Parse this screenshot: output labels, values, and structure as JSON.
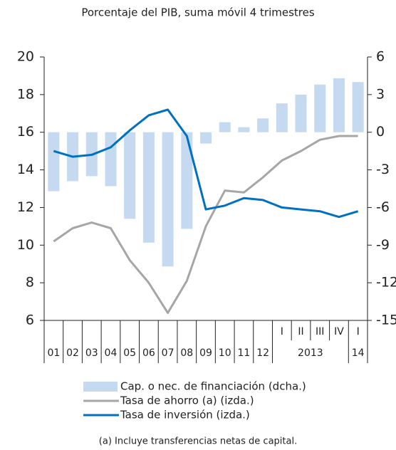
{
  "chart_data": {
    "type": "bar_line",
    "title": "Porcentaje del PIB, suma móvil 4 trimestres",
    "categories": [
      "01",
      "02",
      "03",
      "04",
      "05",
      "06",
      "07",
      "08",
      "09",
      "10",
      "11",
      "12",
      "2013",
      null,
      null,
      null,
      "14"
    ],
    "quarters": [
      null,
      null,
      null,
      null,
      null,
      null,
      null,
      null,
      null,
      null,
      null,
      null,
      "I",
      "II",
      "III",
      "IV",
      "I"
    ],
    "ylim": [
      6,
      20
    ],
    "yticks": [
      6,
      8,
      10,
      12,
      14,
      16,
      18,
      20
    ],
    "y2lim": [
      -15,
      6
    ],
    "y2ticks": [
      -15,
      -12,
      -9,
      -6,
      -3,
      0,
      3,
      6
    ],
    "series": [
      {
        "name": "Cap. o nec. de financiación  (dcha.)",
        "type": "bar",
        "axis": "y2",
        "color": "#c5d9f1",
        "values": [
          -4.7,
          -3.9,
          -3.5,
          -4.3,
          -6.9,
          -8.8,
          -10.7,
          -7.7,
          -0.9,
          0.8,
          0.4,
          1.1,
          2.3,
          3.0,
          3.8,
          4.3,
          4.0
        ]
      },
      {
        "name": "Tasa de ahorro (a)  (izda.)",
        "type": "line",
        "color": "#a6a6a6",
        "values": [
          10.2,
          10.9,
          11.2,
          10.9,
          9.2,
          8.0,
          6.4,
          8.1,
          11.0,
          12.9,
          12.8,
          13.6,
          14.5,
          15.0,
          15.6,
          15.8,
          15.8
        ]
      },
      {
        "name": "Tasa de inversión  (izda.)",
        "type": "line",
        "color": "#0070c0",
        "values": [
          15.0,
          14.7,
          14.8,
          15.2,
          16.1,
          16.9,
          17.2,
          15.8,
          11.9,
          12.1,
          12.5,
          12.4,
          12.0,
          11.9,
          11.8,
          11.5,
          11.8
        ]
      }
    ],
    "footnote": "(a) Incluye transferencias netas de capital."
  }
}
